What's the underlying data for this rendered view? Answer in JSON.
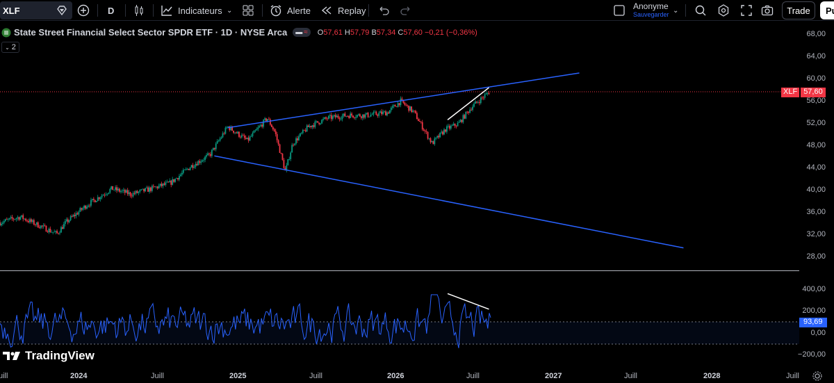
{
  "toolbar": {
    "symbol": "XLF",
    "interval": "D",
    "indicators_label": "Indicateurs",
    "alert_label": "Alerte",
    "replay_label": "Replay",
    "user_name": "Anonyme",
    "user_status": "Sauvegarder",
    "trade_label": "Trade",
    "publish_label": "Pu"
  },
  "legend": {
    "title": "State Street Financial Select Sector SPDR ETF · 1D · NYSE Arca",
    "o_label": "O",
    "o_value": "57,61",
    "h_label": "H",
    "h_value": "57,79",
    "b_label": "B",
    "b_value": "57,34",
    "c_label": "C",
    "c_value": "57,60",
    "change": "−0,21 (−0,36%)",
    "collapse_count": "2"
  },
  "price_scale": {
    "labels": [
      "68,00",
      "64,00",
      "60,00",
      "56,00",
      "52,00",
      "48,00",
      "44,00",
      "40,00",
      "36,00",
      "32,00",
      "28,00"
    ],
    "last_symbol": "XLF",
    "last_value": "57,60"
  },
  "indicator_scale": {
    "labels": [
      "400,00",
      "200,00",
      "0,00",
      "−200,00"
    ],
    "last_value": "93,69"
  },
  "time_axis": [
    "uill",
    "2024",
    "Juill",
    "2025",
    "Juill",
    "2026",
    "Juill",
    "2027",
    "Juill",
    "2028",
    "Juill"
  ],
  "watermark": "TradingView",
  "colors": {
    "up": "#089981",
    "down": "#f23645",
    "trendline": "#2962ff",
    "indicator": "#2962ff",
    "divergence": "#ffffff"
  },
  "chart_data": {
    "type": "candlestick",
    "y_range": [
      26.5,
      69.5
    ],
    "x_range": [
      "2023-06-15",
      "2028-07-15"
    ],
    "price_path": [
      [
        "2023-06-15",
        34.5
      ],
      [
        "2023-08-01",
        35.5
      ],
      [
        "2023-10-25",
        32.5
      ],
      [
        "2023-11-15",
        34.5
      ],
      [
        "2024-01-01",
        37.5
      ],
      [
        "2024-03-01",
        40.5
      ],
      [
        "2024-04-15",
        39.5
      ],
      [
        "2024-06-01",
        40.5
      ],
      [
        "2024-07-15",
        41.5
      ],
      [
        "2024-09-01",
        44.5
      ],
      [
        "2024-10-15",
        46.5
      ],
      [
        "2024-11-25",
        51.5
      ],
      [
        "2025-01-10",
        49.0
      ],
      [
        "2025-02-25",
        53.0
      ],
      [
        "2025-03-15",
        50.5
      ],
      [
        "2025-04-08",
        43.5
      ],
      [
        "2025-04-25",
        48.5
      ],
      [
        "2025-06-01",
        51.5
      ],
      [
        "2025-07-15",
        53.0
      ],
      [
        "2025-09-01",
        53.5
      ],
      [
        "2025-10-15",
        53.5
      ],
      [
        "2025-12-01",
        54.0
      ],
      [
        "2026-01-01",
        56.0
      ],
      [
        "2026-02-01",
        54.0
      ],
      [
        "2026-03-15",
        48.5
      ],
      [
        "2026-04-15",
        51.0
      ],
      [
        "2026-05-15",
        52.0
      ],
      [
        "2026-06-15",
        55.0
      ],
      [
        "2026-07-25",
        57.6
      ]
    ],
    "last_close": 57.6,
    "trendlines": [
      {
        "name": "upper",
        "from": [
          "2024-11-25",
          51.3
        ],
        "to": [
          "2027-02-20",
          61.0
        ]
      },
      {
        "name": "lower",
        "from": [
          "2024-10-25",
          46.3
        ],
        "to": [
          "2027-10-20",
          30.0
        ]
      },
      {
        "name": "price-divergence",
        "from": [
          "2026-04-20",
          52.7
        ],
        "to": [
          "2026-07-25",
          58.4
        ]
      }
    ],
    "indicator": {
      "y_range": [
        -300,
        450
      ],
      "last_value": 93.69,
      "bands": [
        100,
        -100
      ],
      "divergence_line": {
        "from": [
          "2026-04-20",
          310
        ],
        "to": [
          "2026-07-25",
          170
        ]
      }
    }
  }
}
